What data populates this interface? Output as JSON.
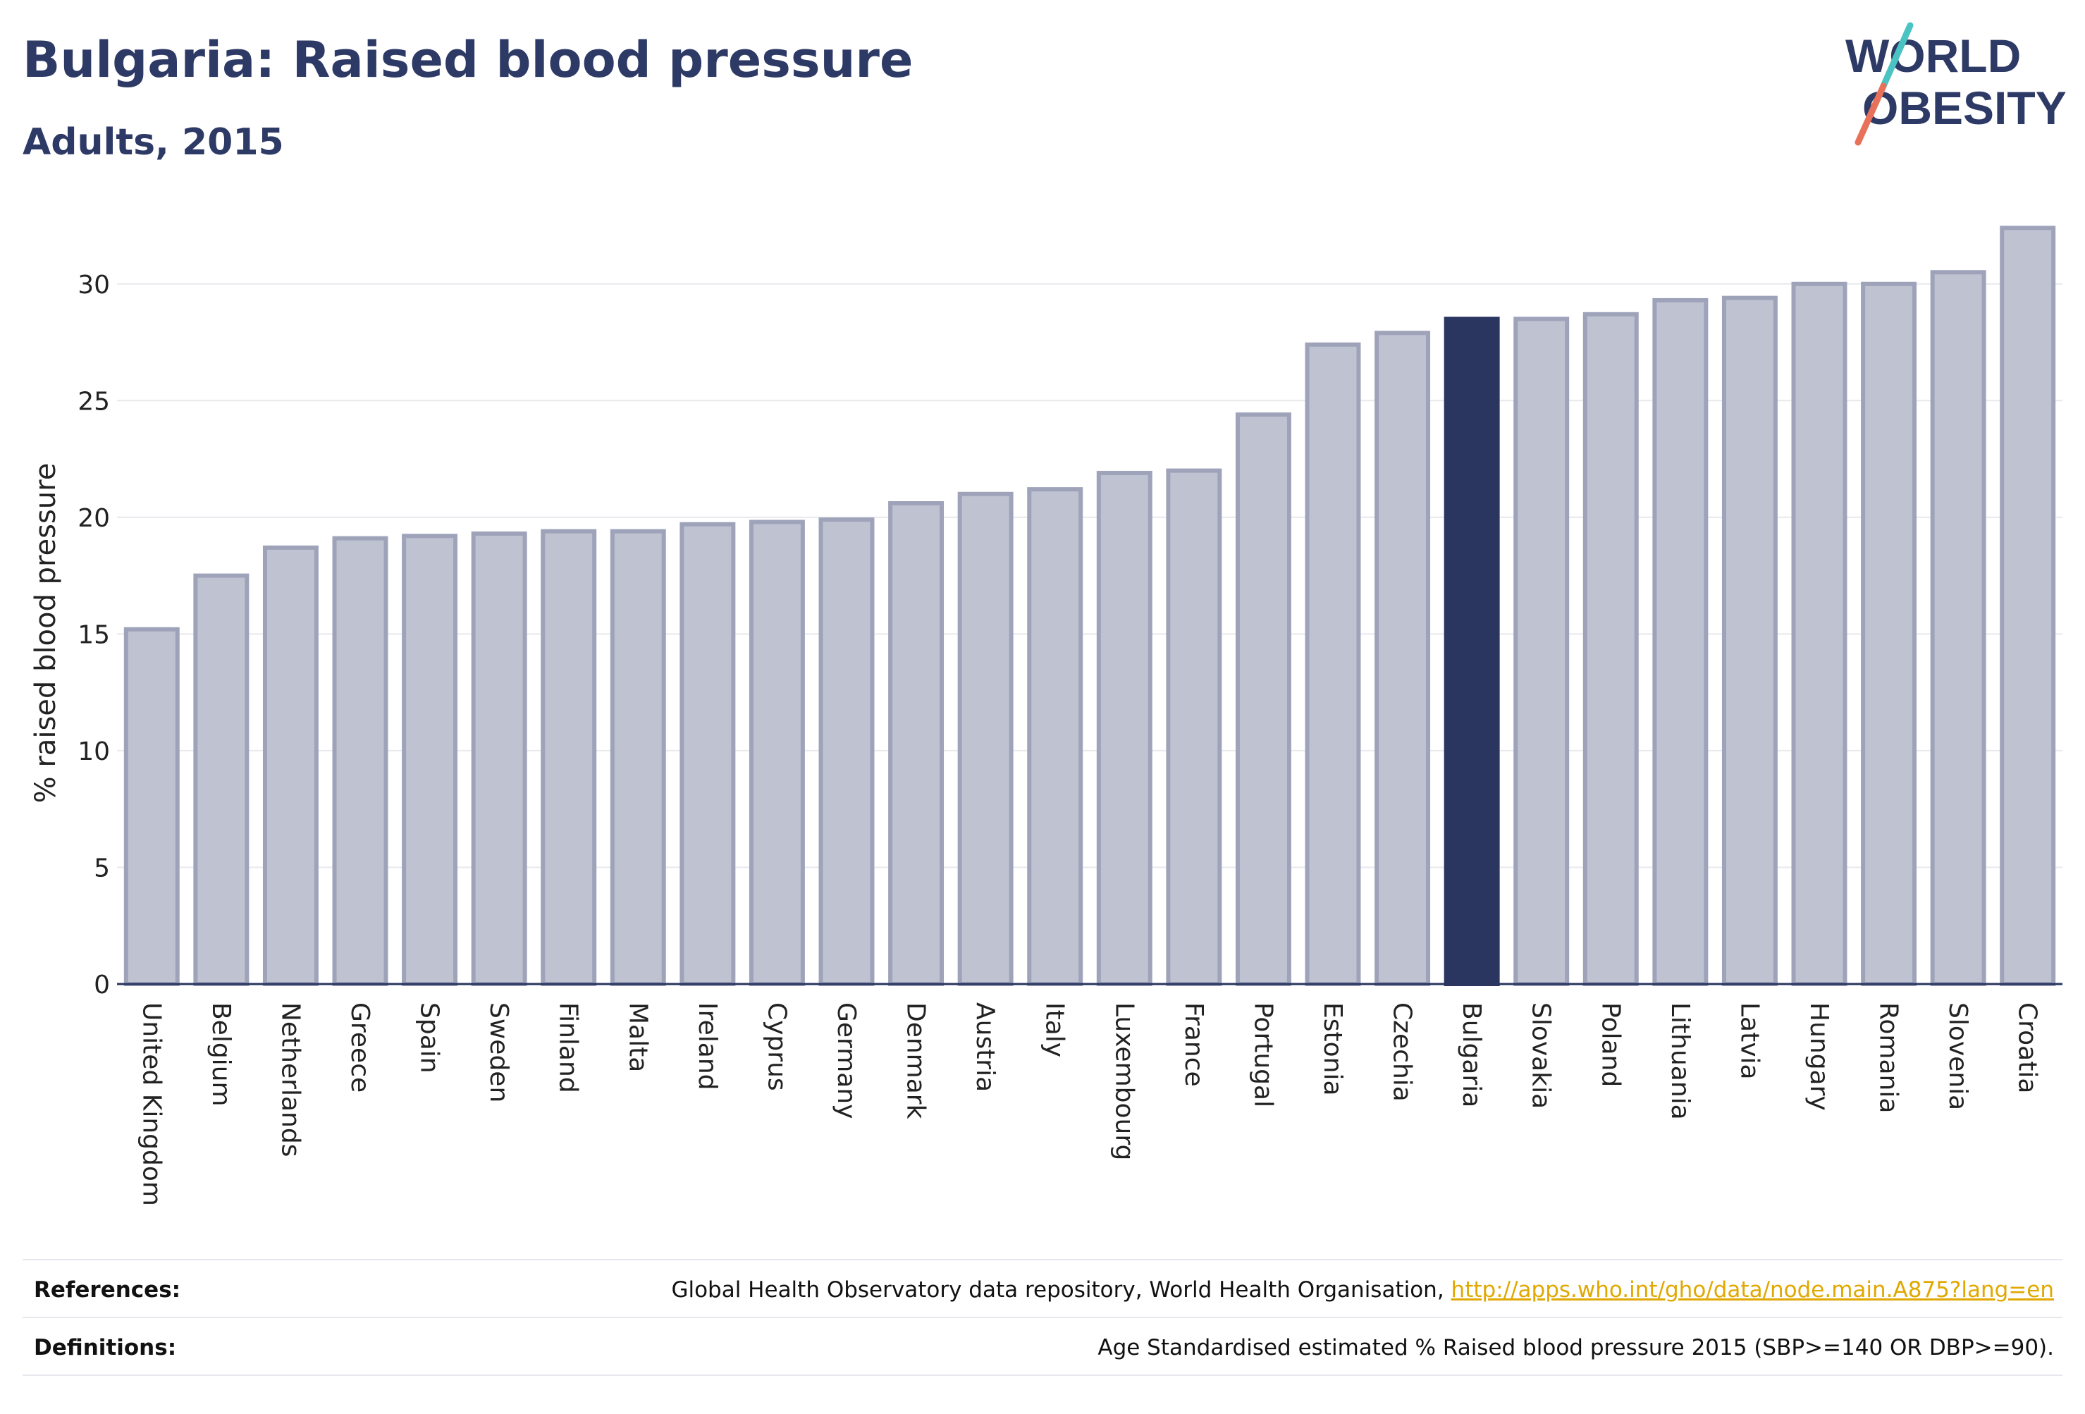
{
  "header": {
    "title": "Bulgaria: Raised blood pressure",
    "subtitle": "Adults, 2015"
  },
  "logo": {
    "line1": "WORLD",
    "line2": "OBESITY",
    "text_color": "#2e3a66",
    "slash_top_color": "#4cc3c3",
    "slash_bottom_color": "#e8715a"
  },
  "colors": {
    "bar_fill": "#bfc2d0",
    "bar_stroke": "#9ea3ba",
    "highlight": "#2a3560",
    "grid": "#e8e9ee",
    "axis": "#2a3560"
  },
  "chart_data": {
    "type": "bar",
    "ylabel": "% raised blood pressure",
    "xlabel": "",
    "ylim": [
      0,
      32.5
    ],
    "yticks": [
      0,
      5,
      10,
      15,
      20,
      25,
      30
    ],
    "grid": true,
    "highlight_category": "Bulgaria",
    "categories": [
      "United Kingdom",
      "Belgium",
      "Netherlands",
      "Greece",
      "Spain",
      "Sweden",
      "Finland",
      "Malta",
      "Ireland",
      "Cyprus",
      "Germany",
      "Denmark",
      "Austria",
      "Italy",
      "Luxembourg",
      "France",
      "Portugal",
      "Estonia",
      "Czechia",
      "Bulgaria",
      "Slovakia",
      "Poland",
      "Lithuania",
      "Latvia",
      "Hungary",
      "Romania",
      "Slovenia",
      "Croatia"
    ],
    "values": [
      15.2,
      17.5,
      18.7,
      19.1,
      19.2,
      19.3,
      19.4,
      19.4,
      19.7,
      19.8,
      19.9,
      20.6,
      21.0,
      21.2,
      21.9,
      22.0,
      24.4,
      27.4,
      27.9,
      28.5,
      28.5,
      28.7,
      29.3,
      29.4,
      30.0,
      30.0,
      30.5,
      32.4
    ]
  },
  "footer": {
    "references_label": "References:",
    "references_text": "Global Health Observatory data repository, World Health Organisation, ",
    "references_link": "http://apps.who.int/gho/data/node.main.A875?lang=en",
    "definitions_label": "Definitions:",
    "definitions_text": "Age Standardised estimated % Raised blood pressure 2015 (SBP>=140 OR DBP>=90)."
  }
}
